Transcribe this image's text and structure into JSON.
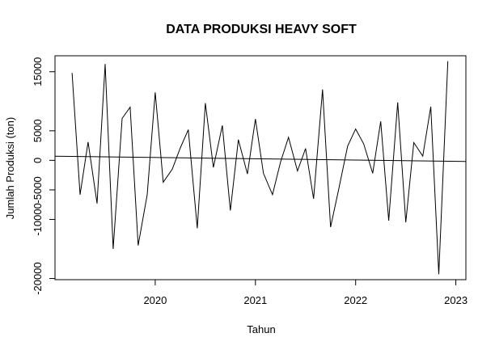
{
  "chart_data": {
    "type": "line",
    "title": "DATA PRODUKSI HEAVY SOFT",
    "xlabel": "Tahun",
    "ylabel": "Jumlah Produksi (ton)",
    "xlim": [
      2019.0,
      2023.1
    ],
    "ylim": [
      -20200,
      17700
    ],
    "x_ticks": [
      2020,
      2021,
      2022,
      2023
    ],
    "x_tick_labels": [
      "2020",
      "2021",
      "2022",
      "2023"
    ],
    "y_ticks": [
      -20000,
      -10000,
      -5000,
      0,
      5000,
      15000
    ],
    "y_tick_labels": [
      "-20000",
      "-10000",
      "-5000",
      "0",
      "5000",
      "15000"
    ],
    "grid": false,
    "series": [
      {
        "x": [
          2019.17,
          2019.25,
          2019.33,
          2019.42,
          2019.5,
          2019.58,
          2019.67,
          2019.75,
          2019.83,
          2019.92,
          2020.0,
          2020.08,
          2020.17,
          2020.25,
          2020.33,
          2020.42,
          2020.5,
          2020.58,
          2020.67,
          2020.75,
          2020.83,
          2020.92,
          2021.0,
          2021.08,
          2021.17,
          2021.25,
          2021.33,
          2021.42,
          2021.5,
          2021.58,
          2021.67,
          2021.75,
          2021.83,
          2021.92,
          2022.0,
          2022.08,
          2022.17,
          2022.25,
          2022.33,
          2022.42,
          2022.5,
          2022.58,
          2022.67,
          2022.75,
          2022.83,
          2022.92
        ],
        "values": [
          14800,
          -5800,
          3100,
          -7300,
          16300,
          -15000,
          7100,
          9000,
          -14400,
          -5800,
          11500,
          -3700,
          -1500,
          2100,
          5200,
          -11500,
          9700,
          -1200,
          5900,
          -8500,
          3500,
          -2300,
          7000,
          -2200,
          -5800,
          -300,
          3900,
          -1800,
          2000,
          -6500,
          12000,
          -11300,
          -5000,
          2400,
          5300,
          2800,
          -2200,
          6600,
          -10200,
          9800,
          -10500,
          3000,
          700,
          9100,
          -19300,
          16800
        ]
      },
      {
        "x": [
          2019.0,
          2023.1
        ],
        "values": [
          700,
          -200
        ]
      }
    ]
  }
}
